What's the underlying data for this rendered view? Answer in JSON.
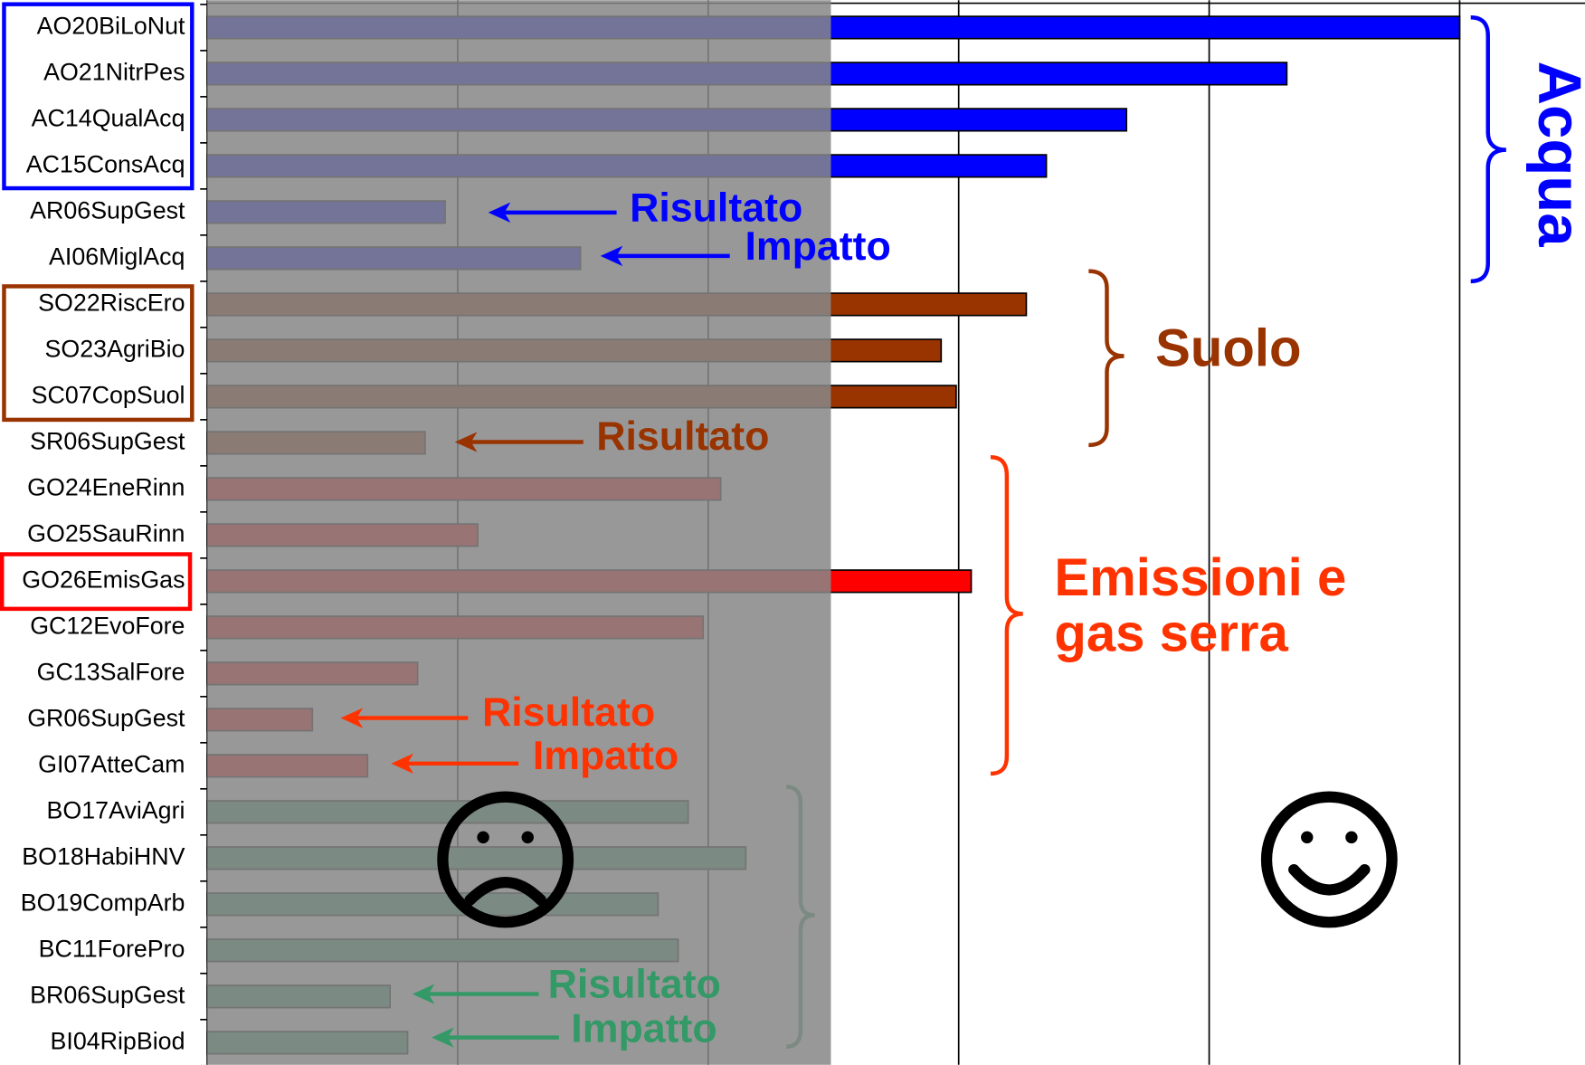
{
  "chart_data": {
    "type": "bar",
    "orientation": "horizontal",
    "categories": [
      "AO20BiLoNut",
      "AO21NitrPes",
      "AC14QualAcq",
      "AC15ConsAcq",
      "AR06SupGest",
      "AI06MiglAcq",
      "SO22RiscEro",
      "SO23AgriBio",
      "SC07CopSuol",
      "SR06SupGest",
      "GO24EneRinn",
      "GO25SauRinn",
      "GO26EmisGas",
      "GC12EvoFore",
      "GC13SalFore",
      "GR06SupGest",
      "GI07AtteCam",
      "BO17AviAgri",
      "BO18HabiHNV",
      "BO19CompArb",
      "BC11ForePro",
      "BR06SupGest",
      "BI04RipBiod"
    ],
    "values": [
      5.0,
      4.31,
      3.67,
      3.35,
      0.95,
      1.49,
      3.27,
      2.93,
      2.99,
      0.87,
      2.05,
      1.08,
      3.05,
      1.98,
      0.84,
      0.42,
      0.64,
      1.92,
      2.15,
      1.8,
      1.88,
      0.73,
      0.8
    ],
    "colors": [
      "#0000ff",
      "#0000ff",
      "#0000ff",
      "#0000ff",
      "#0000ff",
      "#0000ff",
      "#993300",
      "#993300",
      "#993300",
      "#993300",
      "#ff0000",
      "#ff0000",
      "#ff0000",
      "#ff0000",
      "#ff0000",
      "#ff0000",
      "#ff0000",
      "#339966",
      "#339966",
      "#339966",
      "#339966",
      "#339966",
      "#339966"
    ],
    "xlim": [
      0,
      5
    ],
    "xticks": [
      0,
      1,
      2,
      3,
      4,
      5
    ],
    "grid": true,
    "annotations": [
      {
        "text": "Risultato",
        "color": "#0000ff"
      },
      {
        "text": "Impatto",
        "color": "#0000ff"
      },
      {
        "text": "Risultato",
        "color": "#993300"
      },
      {
        "text": "Risultato",
        "color": "#ff3300"
      },
      {
        "text": "Impatto",
        "color": "#ff3300"
      },
      {
        "text": "Risultato",
        "color": "#339966"
      },
      {
        "text": "Impatto",
        "color": "#339966"
      }
    ],
    "groups": [
      {
        "lines": [
          "Acqua"
        ],
        "color": "#0000ff"
      },
      {
        "lines": [
          "Suolo"
        ],
        "color": "#993300"
      },
      {
        "lines": [
          "Emissioni e",
          "gas serra"
        ],
        "color": "#ff3300"
      }
    ]
  }
}
